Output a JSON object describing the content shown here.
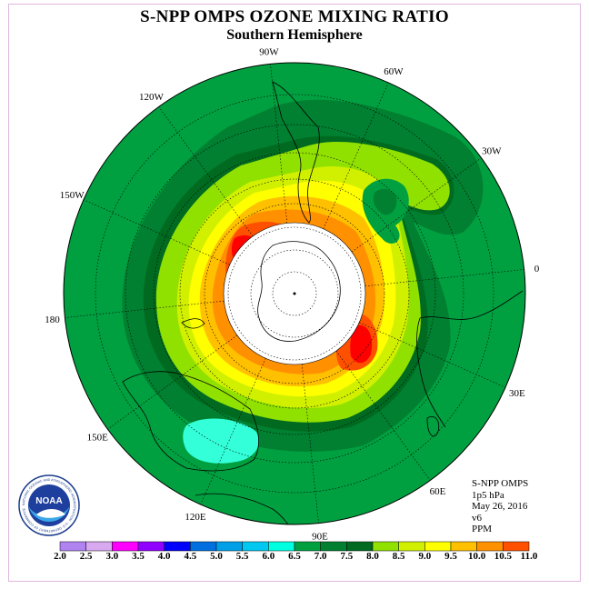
{
  "header": {
    "title": "S-NPP OMPS OZONE MIXING RATIO",
    "subtitle": "Southern Hemisphere"
  },
  "map": {
    "projection": "south-polar-stereographic",
    "longitude_labels": [
      "90W",
      "60W",
      "30W",
      "0",
      "30E",
      "60E",
      "90E",
      "120E",
      "150E",
      "180",
      "150W",
      "120W"
    ],
    "center_mask": "no-data-polar-circle",
    "colors": {
      "land_outline": "#000000",
      "grid": "#000000"
    }
  },
  "info": {
    "instrument": "S-NPP OMPS",
    "level": "1p5 hPa",
    "date": "May 26, 2016",
    "version": "v6",
    "units": "PPM"
  },
  "colorbar": {
    "labels": [
      "2.0",
      "2.5",
      "3.0",
      "3.5",
      "4.0",
      "4.5",
      "5.0",
      "5.5",
      "6.0",
      "6.5",
      "7.0",
      "7.5",
      "8.0",
      "8.5",
      "9.0",
      "9.5",
      "10.0",
      "10.5",
      "11.0"
    ],
    "colors": [
      "#b083f0",
      "#d8a8f0",
      "#ff00ff",
      "#9000ff",
      "#0000ff",
      "#0070e0",
      "#00a0e8",
      "#00c8f0",
      "#00ffe0",
      "#00a040",
      "#008030",
      "#006a20",
      "#90e000",
      "#d0f000",
      "#ffff00",
      "#ffc000",
      "#ff9000",
      "#ff5000",
      "#ff0000",
      "#7a4a30"
    ]
  },
  "logo": {
    "text": "NOAA",
    "ring_text": "NATIONAL OCEANIC AND ATMOSPHERIC ADMINISTRATION · U.S. DEPARTMENT OF COMMERCE"
  }
}
